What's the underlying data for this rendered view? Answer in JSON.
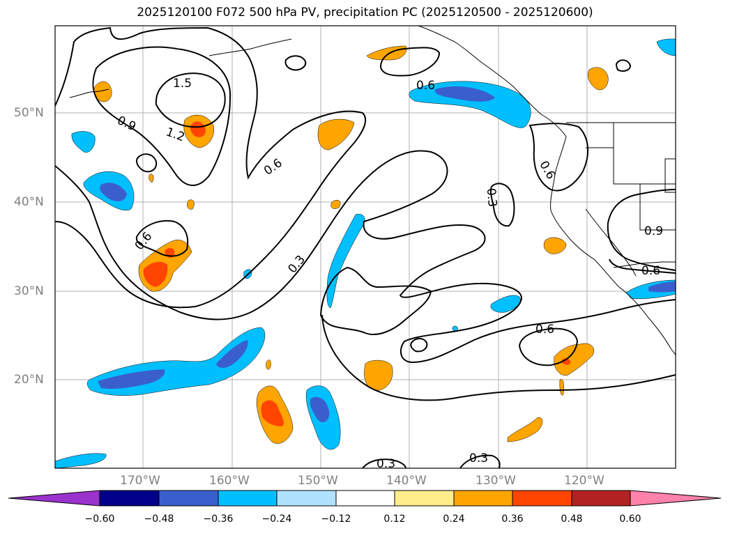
{
  "title": "2025120100 F072 500 hPa PV, precipitation PC (2025120500 - 2025120600)",
  "lon_labels": [
    "170°W",
    "160°W",
    "150°W",
    "140°W",
    "130°W",
    "120°W"
  ],
  "lat_labels": [
    "50°N",
    "40°N",
    "30°N",
    "20°N"
  ],
  "contour_labels": [
    "1.5",
    "1.2",
    "0.9",
    "0.6",
    "0.6",
    "0.3",
    "0.3",
    "0.6",
    "0.6",
    "0.9",
    "0.6",
    "0.6",
    "0.3",
    "0.3"
  ],
  "colorbar": {
    "ticks": [
      "−0.60",
      "−0.48",
      "−0.36",
      "−0.24",
      "−0.12",
      "0.12",
      "0.24",
      "0.36",
      "0.48",
      "0.60"
    ],
    "colors": [
      "#9a32cd",
      "#00008b",
      "#3a5fcd",
      "#00bfff",
      "#b0e2ff",
      "#ffffff",
      "#ffec8b",
      "#ffa500",
      "#ff4500",
      "#b22222",
      "#ff82ab"
    ]
  },
  "colors": {
    "cool_light": "#00bfff",
    "cool_dark": "#3a5fcd",
    "warm_light": "#ffa500",
    "warm_dark": "#ff4500",
    "grid": "#b0b0b0"
  }
}
